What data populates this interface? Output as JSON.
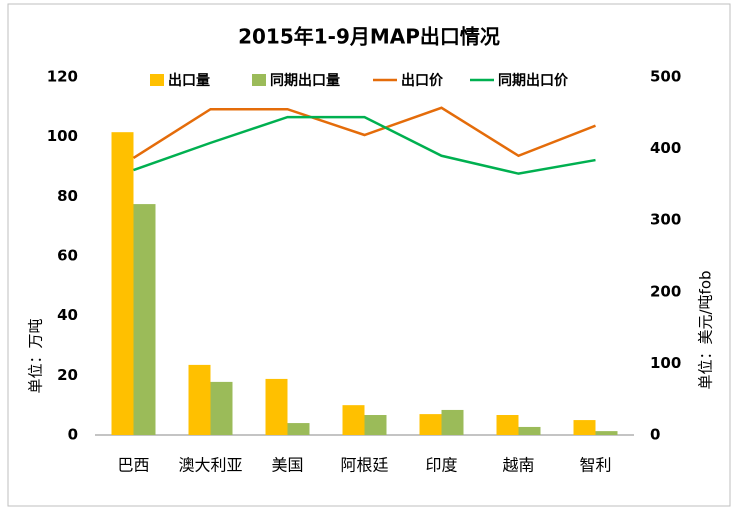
{
  "chart_data": {
    "type": "bar_line",
    "title": "2015年1-9月MAP出口情况",
    "y_label": "单位：万吨",
    "y2_label": "单位：美元/吨fob",
    "categories": [
      "巴西",
      "澳大利亚",
      "美国",
      "阿根廷",
      "印度",
      "越南",
      "智利"
    ],
    "series": [
      {
        "name": "出口量",
        "type": "bar",
        "color": "#FFC000",
        "values": [
          101.5,
          23.5,
          18.8,
          10,
          7,
          6.7,
          5
        ]
      },
      {
        "name": "同期出口量",
        "type": "bar",
        "color": "#9BBB59",
        "values": [
          77.4,
          17.8,
          4,
          6.7,
          8.4,
          2.7,
          1.3
        ]
      },
      {
        "name": "出口价",
        "type": "line",
        "axis": "y2",
        "color": "#E46C0A",
        "values": [
          387,
          455,
          455,
          419,
          457,
          390,
          432
        ]
      },
      {
        "name": "同期出口价",
        "type": "line",
        "axis": "y2",
        "color": "#00B050",
        "values": [
          370,
          408,
          444,
          444,
          390,
          365,
          384
        ]
      }
    ],
    "ylim": [
      0,
      120
    ],
    "yticks": [
      0,
      20,
      40,
      60,
      80,
      100,
      120
    ],
    "y2lim": [
      0,
      500
    ],
    "y2ticks": [
      0,
      100,
      200,
      300,
      400,
      500
    ],
    "legend": "top",
    "grid": false
  }
}
